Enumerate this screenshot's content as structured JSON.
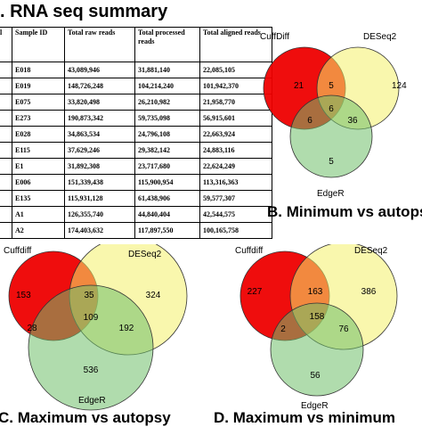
{
  "panels": {
    "a_title": ". RNA seq summary",
    "b_title": "B. Minimum vs autopsy",
    "c_title": "C. Maximum vs autopsy",
    "d_title": "D. Maximum vs minimum"
  },
  "table": {
    "headers": [
      "l",
      "Sample ID",
      "Total raw reads",
      "Total processed reads",
      "Total aligned reads"
    ],
    "rows": [
      [
        "",
        "E018",
        "43,089,946",
        "31,881,140",
        "22,085,105"
      ],
      [
        "",
        "E019",
        "148,726,248",
        "104,214,240",
        "101,942,370"
      ],
      [
        "",
        "E075",
        "33,820,498",
        "26,210,982",
        "21,958,770"
      ],
      [
        "",
        "E273",
        "190,873,342",
        "59,735,098",
        "56,915,601"
      ],
      [
        "",
        "E028",
        "34,863,534",
        "24,796,108",
        "22,663,924"
      ],
      [
        "",
        "E115",
        "37,629,246",
        "29,382,142",
        "24,883,116"
      ],
      [
        "",
        "E1",
        "31,892,308",
        "23,717,680",
        "22,624,249"
      ],
      [
        "",
        "E006",
        "151,339,438",
        "115,900,954",
        "113,316,363"
      ],
      [
        "",
        "E135",
        "115,931,128",
        "61,438,906",
        "59,577,307"
      ],
      [
        "",
        "A1",
        "126,355,740",
        "44,840,404",
        "42,544,575"
      ],
      [
        "",
        "A2",
        "174,403,632",
        "117,897,550",
        "100,165,758"
      ]
    ]
  },
  "venn_colors": {
    "set1": "#ee0000",
    "set2": "#f4f06a",
    "set3": "#6fbf6a"
  },
  "venn_b": {
    "set_labels": [
      "CuffDiff",
      "DESeq2",
      "EdgeR"
    ],
    "regions": {
      "only1": "21",
      "only2": "124",
      "only3": "5",
      "r12": "5",
      "r13": "6",
      "r23": "36",
      "r123": "6"
    }
  },
  "venn_c": {
    "set_labels": [
      "Cuffdiff",
      "DESeq2",
      "EdgeR"
    ],
    "regions": {
      "only1": "153",
      "only2": "324",
      "only3": "536",
      "r12": "35",
      "r13": "28",
      "r23": "192",
      "r123": "109"
    }
  },
  "venn_d": {
    "set_labels": [
      "Cuffdiff",
      "DESeq2",
      "EdgeR"
    ],
    "regions": {
      "only1": "227",
      "only2": "386",
      "only3": "56",
      "r12": "163",
      "r13": "2",
      "r23": "76",
      "r123": "158"
    }
  }
}
